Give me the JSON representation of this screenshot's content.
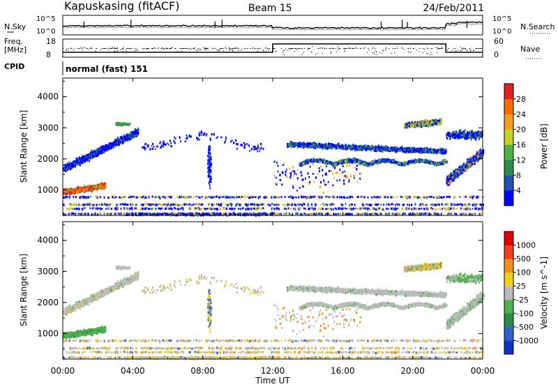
{
  "header": {
    "station": "Kapuskasing (fitACF)",
    "beam": "Beam 15",
    "date": "24/Feb/2011"
  },
  "top_panels": {
    "nsky_label": "N.Sky",
    "nsearch_label": "N.Search",
    "noise_ticks": [
      "10^5",
      "10^0"
    ],
    "freq_label": "Freq.",
    "freq_unit": "[MHz]",
    "freq_ticks": [
      "18",
      "8"
    ],
    "nave_label": "Nave",
    "nave_ticks": [
      "60",
      "0"
    ],
    "cpid_label": "CPID",
    "cpid_text": "normal (fast) 151"
  },
  "chart_data": [
    {
      "type": "heatmap",
      "name": "power",
      "ylabel": "Slant Range [km]",
      "xlabel": "",
      "x_ticks": [
        "00:00",
        "04:00",
        "08:00",
        "12:00",
        "16:00",
        "20:00",
        "00:00"
      ],
      "x_range_hours": [
        0,
        24
      ],
      "ylim": [
        180,
        4600
      ],
      "y_ticks": [
        1000,
        2000,
        3000,
        4000
      ],
      "colorbar": {
        "label": "Power [dB]",
        "ticks": [
          4,
          8,
          12,
          16,
          20,
          24,
          28
        ],
        "colors": [
          "#0000ff",
          "#2050b0",
          "#2f8a4a",
          "#4fb04a",
          "#c8d020",
          "#f0a020",
          "#ff6a00",
          "#e02020"
        ]
      }
    },
    {
      "type": "heatmap",
      "name": "velocity",
      "ylabel": "Slant Range [km]",
      "xlabel": "Time UT",
      "x_ticks": [
        "00:00",
        "04:00",
        "08:00",
        "12:00",
        "16:00",
        "20:00",
        "00:00"
      ],
      "x_range_hours": [
        0,
        24
      ],
      "ylim": [
        180,
        4600
      ],
      "y_ticks": [
        1000,
        2000,
        3000,
        4000
      ],
      "colorbar": {
        "label": "Velocity [m s^-1]",
        "ticks": [
          "1000",
          "500",
          "100",
          "25",
          "-25",
          "-100",
          "-500",
          "-1000"
        ],
        "colors": [
          "#1030c0",
          "#3060d0",
          "#2f8a4a",
          "#50b050",
          "#bbbbbb",
          "#f0d020",
          "#f09020",
          "#f04020",
          "#e00000"
        ]
      }
    }
  ]
}
